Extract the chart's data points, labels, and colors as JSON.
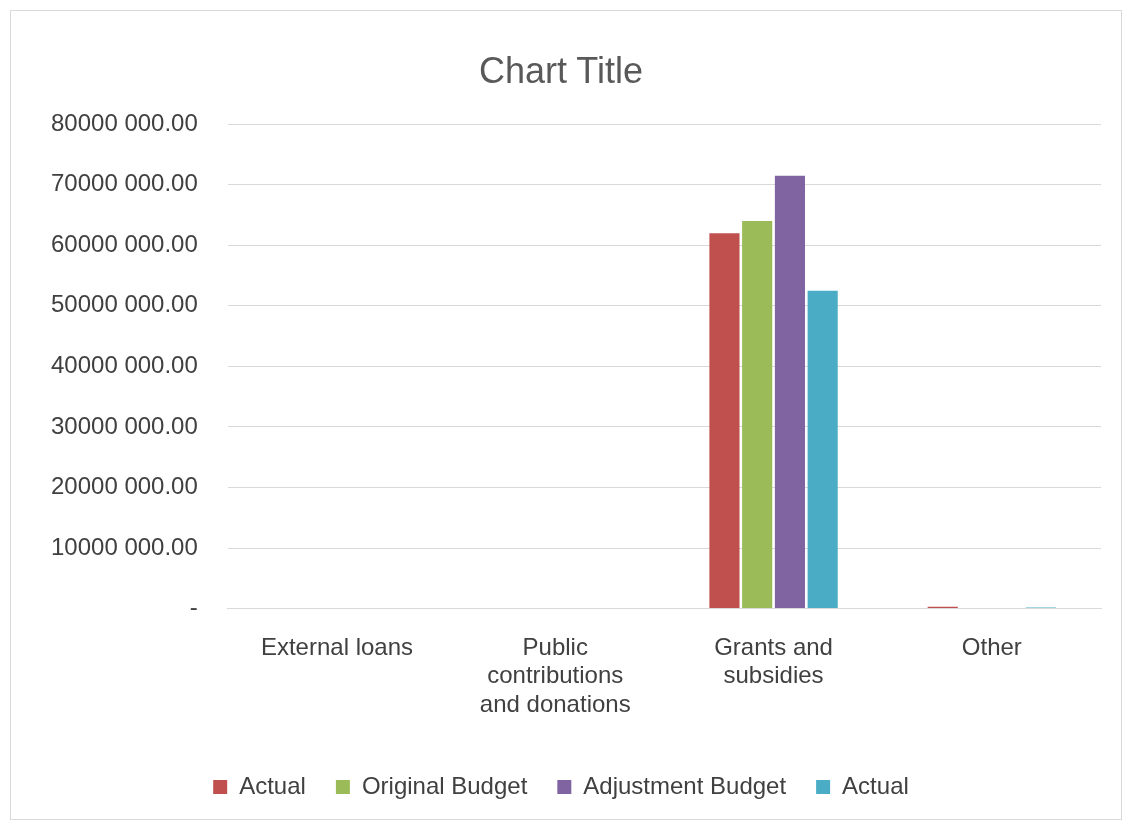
{
  "chart_data": {
    "type": "bar",
    "title": "Chart Title",
    "categories": [
      "External loans",
      "Public contributions and donations",
      "Grants and subsidies",
      "Other"
    ],
    "series": [
      {
        "name": "Actual",
        "color": "#c0504d",
        "values": [
          null,
          null,
          62000000,
          300000
        ]
      },
      {
        "name": "Original Budget",
        "color": "#9bbb59",
        "values": [
          null,
          null,
          64000000,
          null
        ]
      },
      {
        "name": "Adjustment Budget",
        "color": "#8064a2",
        "values": [
          null,
          null,
          71500000,
          null
        ]
      },
      {
        "name": "Actual",
        "color": "#4bacc6",
        "values": [
          null,
          null,
          52500000,
          200000
        ]
      }
    ],
    "ylim": [
      0,
      80000000
    ],
    "yticks": [
      {
        "value": 0,
        "label": "-"
      },
      {
        "value": 10000000,
        "label": "10000 000.00"
      },
      {
        "value": 20000000,
        "label": "20000 000.00"
      },
      {
        "value": 30000000,
        "label": "30000 000.00"
      },
      {
        "value": 40000000,
        "label": "40000 000.00"
      },
      {
        "value": 50000000,
        "label": "50000 000.00"
      },
      {
        "value": 60000000,
        "label": "60000 000.00"
      },
      {
        "value": 70000000,
        "label": "70000 000.00"
      },
      {
        "value": 80000000,
        "label": "80000 000.00"
      }
    ],
    "grid": "y",
    "legend": "bottom"
  }
}
